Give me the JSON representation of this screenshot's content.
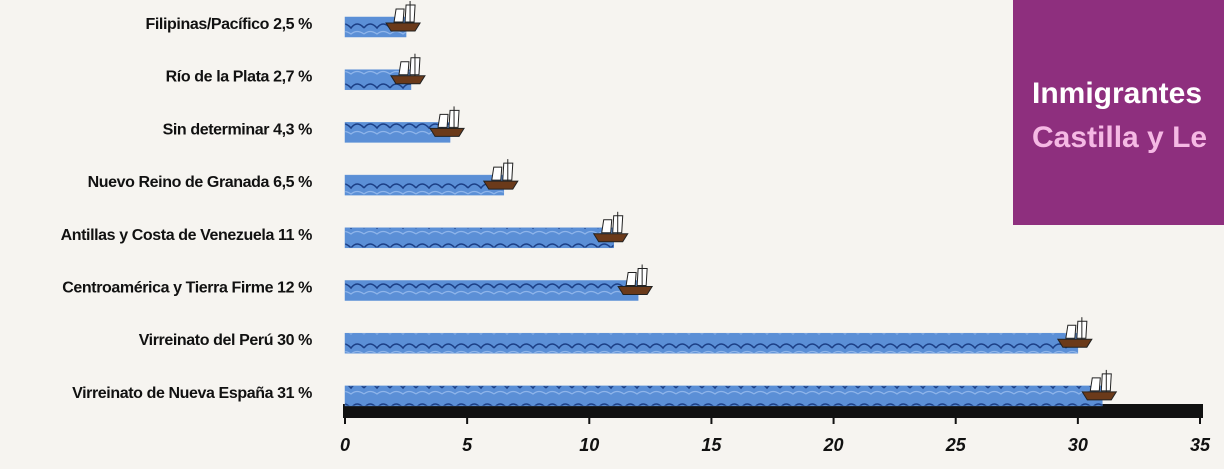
{
  "chart_data": {
    "type": "bar",
    "orientation": "horizontal",
    "title": [
      "Inmigrantes",
      "Castilla y Le"
    ],
    "categories": [
      "Filipinas/Pacífico",
      "Río de la Plata",
      "Sin determinar",
      "Nuevo Reino de Granada",
      "Antillas y Costa de Venezuela",
      "Centroamérica y Tierra Firme",
      "Virreinato del Perú",
      "Virreinato de Nueva España"
    ],
    "values": [
      2.5,
      2.7,
      4.3,
      6.5,
      11,
      12,
      30,
      31
    ],
    "value_labels": [
      "2,5 %",
      "2,7 %",
      "4,3 %",
      "6,5 %",
      "11 %",
      "12 %",
      "30 %",
      "31 %"
    ],
    "color": "#5b8fd6",
    "xlim": [
      0,
      35
    ],
    "xticks": [
      0,
      5,
      10,
      15,
      20,
      25,
      30,
      35
    ]
  }
}
